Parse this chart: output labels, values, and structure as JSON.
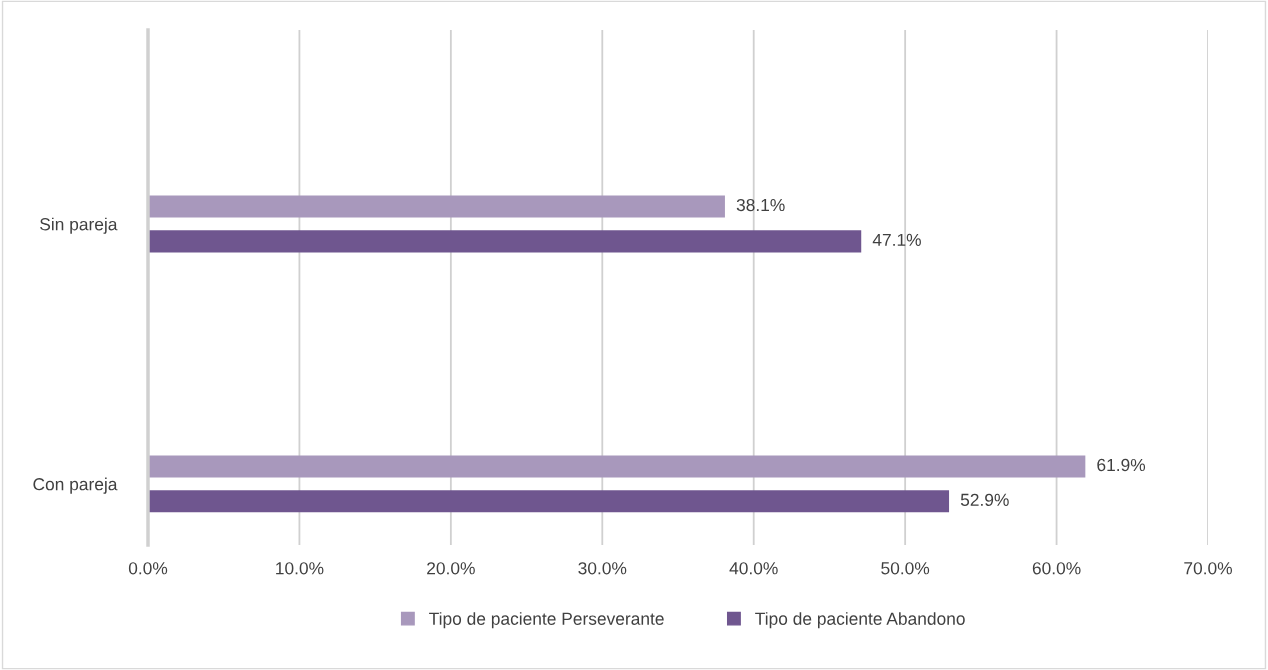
{
  "chart_data": {
    "type": "bar",
    "orientation": "horizontal",
    "categories": [
      "Sin pareja",
      "Con pareja"
    ],
    "series": [
      {
        "name": "Tipo de paciente Perseverante",
        "color": "#a898bc",
        "values": [
          38.1,
          61.9
        ],
        "value_labels": [
          "38.1%",
          "61.9%"
        ]
      },
      {
        "name": "Tipo de paciente Abandono",
        "color": "#6f568f",
        "values": [
          47.1,
          52.9
        ],
        "value_labels": [
          "47.1%",
          "52.9%"
        ]
      }
    ],
    "xlim": [
      0,
      70
    ],
    "xticks": [
      {
        "value": 0,
        "label": "0.0%"
      },
      {
        "value": 10,
        "label": "10.0%"
      },
      {
        "value": 20,
        "label": "20.0%"
      },
      {
        "value": 30,
        "label": "30.0%"
      },
      {
        "value": 40,
        "label": "40.0%"
      },
      {
        "value": 50,
        "label": "50.0%"
      },
      {
        "value": 60,
        "label": "60.0%"
      },
      {
        "value": 70,
        "label": "70.0%"
      }
    ],
    "grid": "x",
    "legend": "bottom"
  }
}
